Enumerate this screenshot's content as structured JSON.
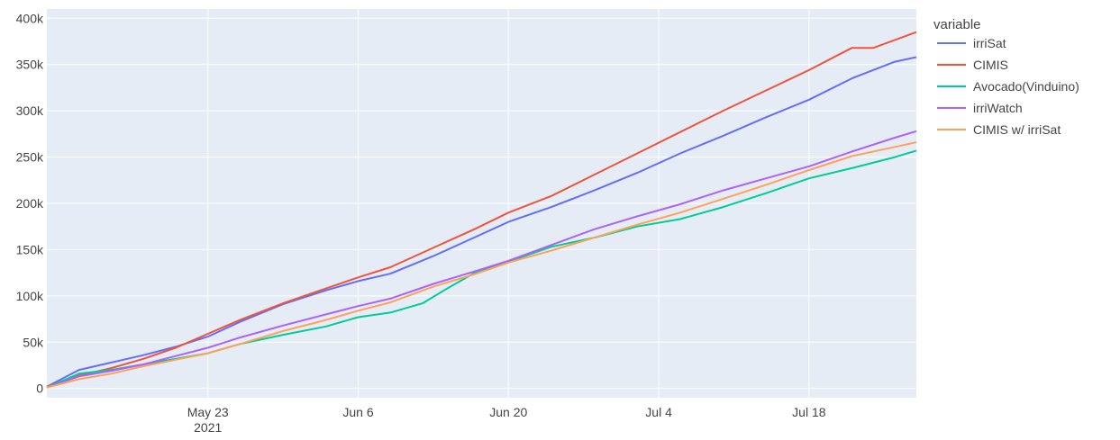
{
  "chart_data": {
    "type": "line",
    "title": "",
    "xlabel": "",
    "ylabel": "",
    "x_range": [
      "2021-05-08",
      "2021-07-28"
    ],
    "ylim": [
      -10000,
      410000
    ],
    "grid": true,
    "legend_title": "variable",
    "legend_position": "right",
    "x_ticks": [
      {
        "date": "2021-05-23",
        "label": "May 23",
        "sublabel": "2021"
      },
      {
        "date": "2021-06-06",
        "label": "Jun 6",
        "sublabel": ""
      },
      {
        "date": "2021-06-20",
        "label": "Jun 20",
        "sublabel": ""
      },
      {
        "date": "2021-07-04",
        "label": "Jul 4",
        "sublabel": ""
      },
      {
        "date": "2021-07-18",
        "label": "Jul 18",
        "sublabel": ""
      }
    ],
    "y_ticks": [
      {
        "value": 0,
        "label": "0"
      },
      {
        "value": 50000,
        "label": "50k"
      },
      {
        "value": 100000,
        "label": "100k"
      },
      {
        "value": 150000,
        "label": "150k"
      },
      {
        "value": 200000,
        "label": "200k"
      },
      {
        "value": 250000,
        "label": "250k"
      },
      {
        "value": 300000,
        "label": "300k"
      },
      {
        "value": 350000,
        "label": "350k"
      },
      {
        "value": 400000,
        "label": "400k"
      }
    ],
    "series": [
      {
        "name": "irriSat",
        "color": "#636efa",
        "x": [
          "2021-05-08",
          "2021-05-11",
          "2021-05-14",
          "2021-05-17",
          "2021-05-20",
          "2021-05-23",
          "2021-05-26",
          "2021-05-30",
          "2021-06-03",
          "2021-06-06",
          "2021-06-09",
          "2021-06-13",
          "2021-06-17",
          "2021-06-20",
          "2021-06-24",
          "2021-06-28",
          "2021-07-02",
          "2021-07-06",
          "2021-07-10",
          "2021-07-14",
          "2021-07-18",
          "2021-07-22",
          "2021-07-26",
          "2021-07-28"
        ],
        "y": [
          2000,
          20000,
          28000,
          36000,
          45000,
          56000,
          72000,
          91000,
          106000,
          116000,
          124000,
          143000,
          164000,
          180000,
          196000,
          214000,
          233000,
          254000,
          273000,
          293000,
          312000,
          335000,
          353000,
          358000
        ]
      },
      {
        "name": "CIMIS",
        "color": "#ef553b",
        "x": [
          "2021-05-08",
          "2021-05-11",
          "2021-05-14",
          "2021-05-17",
          "2021-05-20",
          "2021-05-23",
          "2021-05-26",
          "2021-05-30",
          "2021-06-03",
          "2021-06-06",
          "2021-06-09",
          "2021-06-13",
          "2021-06-17",
          "2021-06-20",
          "2021-06-24",
          "2021-06-28",
          "2021-07-02",
          "2021-07-06",
          "2021-07-10",
          "2021-07-14",
          "2021-07-18",
          "2021-07-22",
          "2021-07-24",
          "2021-07-28"
        ],
        "y": [
          2000,
          14000,
          22000,
          32000,
          44000,
          59000,
          74000,
          92000,
          108000,
          120000,
          131000,
          152000,
          173000,
          190000,
          208000,
          231000,
          254000,
          277000,
          300000,
          322000,
          344000,
          368000,
          368000,
          385000
        ]
      },
      {
        "name": "Avocado(Vinduino)",
        "color": "#00cc96",
        "x": [
          "2021-05-08",
          "2021-05-11",
          "2021-05-14",
          "2021-05-17",
          "2021-05-20",
          "2021-05-23",
          "2021-05-26",
          "2021-05-30",
          "2021-06-03",
          "2021-06-06",
          "2021-06-09",
          "2021-06-12",
          "2021-06-14",
          "2021-06-17",
          "2021-06-20",
          "2021-06-24",
          "2021-06-28",
          "2021-07-02",
          "2021-07-06",
          "2021-07-10",
          "2021-07-14",
          "2021-07-18",
          "2021-07-22",
          "2021-07-26",
          "2021-07-28"
        ],
        "y": [
          1000,
          16000,
          20000,
          26000,
          32000,
          38000,
          48000,
          58000,
          67000,
          77000,
          82000,
          92000,
          106000,
          126000,
          137000,
          153000,
          163000,
          175000,
          183000,
          196000,
          211000,
          227000,
          238000,
          250000,
          257000
        ]
      },
      {
        "name": "irriWatch",
        "color": "#ab63fa",
        "x": [
          "2021-05-08",
          "2021-05-11",
          "2021-05-14",
          "2021-05-17",
          "2021-05-20",
          "2021-05-23",
          "2021-05-26",
          "2021-05-30",
          "2021-06-03",
          "2021-06-06",
          "2021-06-09",
          "2021-06-13",
          "2021-06-17",
          "2021-06-20",
          "2021-06-24",
          "2021-06-28",
          "2021-07-02",
          "2021-07-06",
          "2021-07-10",
          "2021-07-14",
          "2021-07-18",
          "2021-07-22",
          "2021-07-26",
          "2021-07-28"
        ],
        "y": [
          1000,
          13000,
          19000,
          26000,
          35000,
          44000,
          55000,
          68000,
          80000,
          89000,
          97000,
          113000,
          127000,
          138000,
          155000,
          172000,
          186000,
          199000,
          214000,
          227000,
          240000,
          256000,
          271000,
          278000
        ]
      },
      {
        "name": "CIMIS w/ irriSat",
        "color": "#ffa15a",
        "x": [
          "2021-05-08",
          "2021-05-11",
          "2021-05-14",
          "2021-05-17",
          "2021-05-20",
          "2021-05-23",
          "2021-05-26",
          "2021-05-30",
          "2021-06-03",
          "2021-06-06",
          "2021-06-09",
          "2021-06-13",
          "2021-06-17",
          "2021-06-20",
          "2021-06-24",
          "2021-06-28",
          "2021-07-02",
          "2021-07-06",
          "2021-07-10",
          "2021-07-14",
          "2021-07-18",
          "2021-07-22",
          "2021-07-26",
          "2021-07-28"
        ],
        "y": [
          1000,
          10000,
          16000,
          24000,
          31000,
          38000,
          48000,
          62000,
          74000,
          84000,
          93000,
          110000,
          124000,
          136000,
          149000,
          163000,
          177000,
          190000,
          205000,
          220000,
          236000,
          251000,
          261000,
          266000
        ]
      }
    ]
  }
}
